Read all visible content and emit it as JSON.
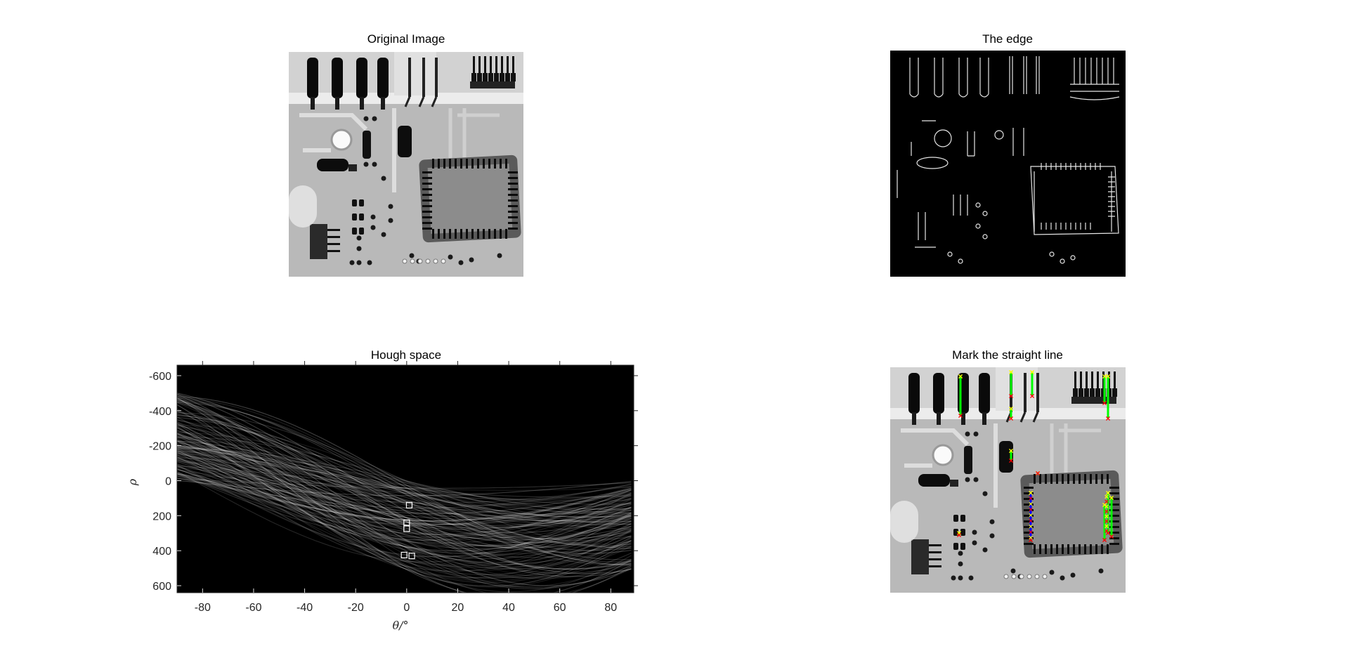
{
  "figure": {
    "panel_titles": {
      "original": "Original Image",
      "edge": "The edge",
      "hough": "Hough space",
      "marked": "Mark the straight line"
    }
  },
  "chart_data": [
    {
      "type": "image",
      "title": "Original Image",
      "content": "grayscale x-ray of circuit board"
    },
    {
      "type": "image",
      "title": "The edge",
      "content": "binary edge map (white edges on black)"
    },
    {
      "type": "heatmap",
      "title": "Hough space",
      "xlabel": "θ/°",
      "ylabel": "ρ",
      "xlim": [
        -90,
        89
      ],
      "ylim": [
        -660,
        640
      ],
      "y_reversed": true,
      "xticks": [
        -80,
        -60,
        -40,
        -20,
        0,
        20,
        40,
        60,
        80
      ],
      "yticks": [
        -600,
        -400,
        -200,
        0,
        200,
        400,
        600
      ],
      "colormap": "gray",
      "peaks": [
        {
          "theta": 1,
          "rho": 140
        },
        {
          "theta": 0,
          "rho": 240
        },
        {
          "theta": 0,
          "rho": 275
        },
        {
          "theta": -1,
          "rho": 425
        },
        {
          "theta": 2,
          "rho": 430
        }
      ]
    },
    {
      "type": "image",
      "title": "Mark the straight line",
      "content": "original image with detected line segments",
      "colors": {
        "segment": "#00ff00",
        "longest_segment": "#0000ff",
        "start_marker": "#ffff00",
        "end_marker": "#ff0000"
      }
    }
  ]
}
